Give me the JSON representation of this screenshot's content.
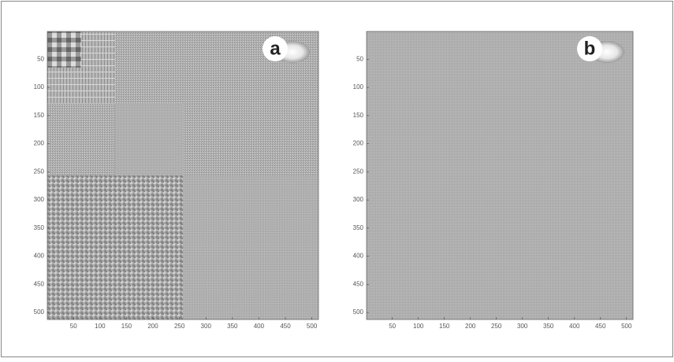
{
  "chart_data": [
    {
      "type": "image",
      "label": "a",
      "xlim": [
        0.5,
        512.5
      ],
      "ylim": [
        0.5,
        512.5
      ],
      "yreverse": true,
      "xticks": [
        50,
        100,
        150,
        200,
        250,
        300,
        350,
        400,
        450,
        500
      ],
      "yticks": [
        50,
        100,
        150,
        200,
        250,
        300,
        350,
        400,
        450,
        500
      ]
    },
    {
      "type": "image",
      "label": "b",
      "xlim": [
        0.5,
        512.5
      ],
      "ylim": [
        0.5,
        512.5
      ],
      "yreverse": true,
      "xticks": [
        50,
        100,
        150,
        200,
        250,
        300,
        350,
        400,
        450,
        500
      ],
      "yticks": [
        50,
        100,
        150,
        200,
        250,
        300,
        350,
        400,
        450,
        500
      ]
    }
  ]
}
